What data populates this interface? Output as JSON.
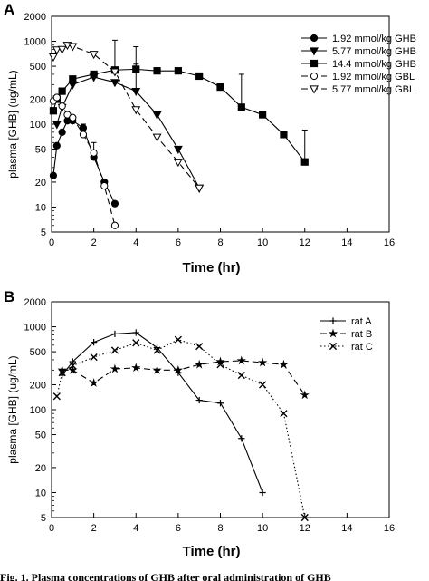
{
  "caption": "Fig. 1. Plasma concentrations of GHB after oral administration of GHB",
  "chart_data": [
    {
      "type": "line",
      "panel_label": "A",
      "xlabel": "Time (hr)",
      "ylabel": "plasma [GHB] (ug/mL)",
      "xlim": [
        0,
        16
      ],
      "ylim": [
        5,
        2000
      ],
      "yscale": "log",
      "xticks": [
        "0",
        "2",
        "4",
        "6",
        "8",
        "10",
        "12",
        "14",
        "16"
      ],
      "yticks": [
        "5",
        "10",
        "20",
        "50",
        "100",
        "200",
        "500",
        "1000",
        "2000"
      ],
      "grid": false,
      "legend_position": "top-right",
      "series": [
        {
          "name": "1.92 mmol/kg GHB",
          "marker": "filled-circle",
          "line": "solid",
          "x": [
            0.083,
            0.25,
            0.5,
            0.75,
            1,
            1.5,
            2,
            2.5,
            3
          ],
          "y": [
            24,
            55,
            80,
            110,
            110,
            90,
            40,
            20,
            11
          ],
          "error": [
            0,
            0,
            0,
            0,
            0,
            0,
            20,
            0,
            0
          ]
        },
        {
          "name": "5.77 mmol/kg GHB",
          "marker": "filled-triangle-down",
          "line": "solid",
          "x": [
            0.25,
            0.5,
            1,
            2,
            3,
            4,
            5,
            6,
            7
          ],
          "y": [
            100,
            160,
            300,
            370,
            320,
            250,
            130,
            50,
            17
          ],
          "error": [
            0,
            0,
            0,
            0,
            0,
            280,
            0,
            0,
            0
          ]
        },
        {
          "name": "14.4 mmol/kg GHB",
          "marker": "filled-square",
          "line": "solid",
          "x": [
            0.083,
            0.25,
            0.5,
            1,
            2,
            3,
            4,
            5,
            6,
            7,
            8,
            9,
            10,
            11,
            12
          ],
          "y": [
            145,
            200,
            250,
            350,
            400,
            450,
            460,
            440,
            440,
            380,
            280,
            160,
            130,
            75,
            35
          ],
          "error": [
            0,
            0,
            0,
            0,
            0,
            0,
            400,
            0,
            0,
            0,
            0,
            240,
            0,
            0,
            50
          ]
        },
        {
          "name": "1.92 mmol/kg GBL",
          "marker": "open-circle",
          "line": "dashed",
          "x": [
            0.083,
            0.25,
            0.5,
            0.75,
            1,
            1.5,
            2,
            2.5,
            3
          ],
          "y": [
            190,
            210,
            165,
            130,
            120,
            75,
            45,
            18,
            6
          ],
          "error": [
            0,
            0,
            0,
            0,
            0,
            25,
            0,
            0,
            0
          ]
        },
        {
          "name": "5.77 mmol/kg GBL",
          "marker": "open-triangle-down",
          "line": "dashed",
          "x": [
            0.083,
            0.25,
            0.5,
            0.75,
            1,
            2,
            3,
            4,
            5,
            6,
            7
          ],
          "y": [
            650,
            790,
            800,
            900,
            870,
            700,
            430,
            150,
            70,
            35,
            17
          ],
          "error": [
            0,
            0,
            0,
            0,
            0,
            0,
            600,
            0,
            0,
            0,
            0
          ]
        }
      ]
    },
    {
      "type": "line",
      "panel_label": "B",
      "xlabel": "Time (hr)",
      "ylabel": "plasma [GHB] (ug/mL)",
      "xlim": [
        0,
        16
      ],
      "ylim": [
        5,
        2000
      ],
      "yscale": "log",
      "xticks": [
        "0",
        "2",
        "4",
        "6",
        "8",
        "10",
        "12",
        "14",
        "16"
      ],
      "yticks": [
        "5",
        "10",
        "20",
        "50",
        "100",
        "200",
        "500",
        "1000",
        "2000"
      ],
      "grid": false,
      "legend_position": "top-right",
      "series": [
        {
          "name": "rat A",
          "marker": "plus",
          "line": "solid",
          "x": [
            0.5,
            1,
            2,
            3,
            4,
            5,
            6,
            7,
            8,
            9,
            10
          ],
          "y": [
            260,
            380,
            650,
            820,
            850,
            560,
            280,
            130,
            120,
            45,
            10
          ]
        },
        {
          "name": "rat B",
          "marker": "star",
          "line": "dashed",
          "x": [
            0.5,
            1,
            2,
            3,
            4,
            5,
            6,
            7,
            8,
            9,
            10,
            11,
            12
          ],
          "y": [
            300,
            300,
            210,
            310,
            320,
            300,
            300,
            350,
            380,
            390,
            370,
            350,
            150
          ]
        },
        {
          "name": "rat C",
          "marker": "x",
          "line": "dotted",
          "x": [
            0.25,
            0.5,
            1,
            2,
            3,
            4,
            5,
            6,
            7,
            8,
            9,
            10,
            11,
            12
          ],
          "y": [
            145,
            280,
            340,
            430,
            520,
            640,
            520,
            700,
            580,
            350,
            260,
            200,
            90,
            5
          ]
        }
      ]
    }
  ]
}
